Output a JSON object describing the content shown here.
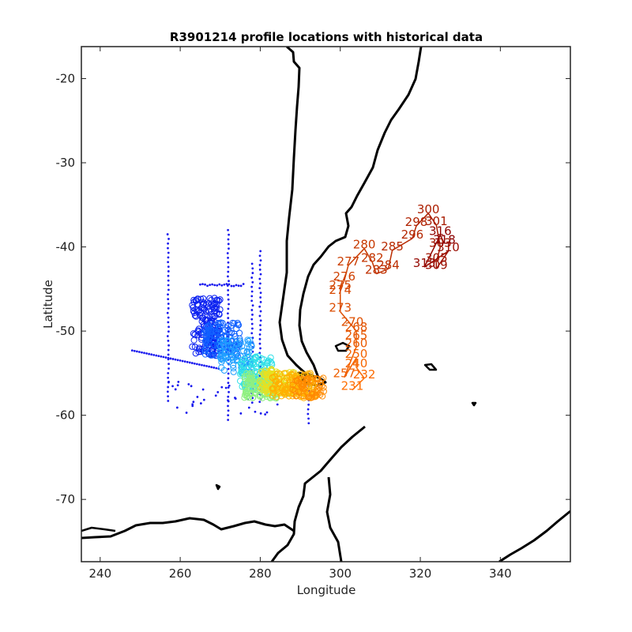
{
  "chart_data": {
    "type": "scatter",
    "title": "R3901214 profile locations with historical data",
    "xlabel": "Longitude",
    "ylabel": "Latitude",
    "xlim": [
      235.3,
      357.5
    ],
    "ylim": [
      -77.4,
      -16.2
    ],
    "xticks": [
      "240",
      "260",
      "280",
      "300",
      "320",
      "340"
    ],
    "yticks": [
      "-20",
      "-30",
      "-40",
      "-50",
      "-60",
      "-70"
    ],
    "xtick_values": [
      240,
      260,
      280,
      300,
      320,
      340
    ],
    "ytick_values": [
      -20,
      -30,
      -40,
      -50,
      -60,
      -70
    ],
    "grid": false,
    "legend": "none",
    "colors": {
      "historical": "#1a1aee",
      "coast": "#000000",
      "axes": "#222222"
    },
    "profile_labels": [
      {
        "text": "231",
        "x": 303,
        "y": -57.0
      },
      {
        "text": "232",
        "x": 306,
        "y": -55.6
      },
      {
        "text": "240",
        "x": 304,
        "y": -54.3
      },
      {
        "text": "250",
        "x": 304,
        "y": -53.2
      },
      {
        "text": "257",
        "x": 301,
        "y": -55.5
      },
      {
        "text": "260",
        "x": 304,
        "y": -51.9
      },
      {
        "text": "265",
        "x": 304,
        "y": -51.0
      },
      {
        "text": "268",
        "x": 304,
        "y": -50.0
      },
      {
        "text": "270",
        "x": 303,
        "y": -49.4
      },
      {
        "text": "273",
        "x": 300,
        "y": -47.7
      },
      {
        "text": "274",
        "x": 300,
        "y": -45.6
      },
      {
        "text": "275",
        "x": 300,
        "y": -45.0
      },
      {
        "text": "276",
        "x": 301,
        "y": -44.0
      },
      {
        "text": "277",
        "x": 302,
        "y": -42.2
      },
      {
        "text": "280",
        "x": 306,
        "y": -40.2
      },
      {
        "text": "282",
        "x": 308,
        "y": -41.8
      },
      {
        "text": "283",
        "x": 309,
        "y": -43.2
      },
      {
        "text": "284",
        "x": 312,
        "y": -42.6
      },
      {
        "text": "285",
        "x": 313,
        "y": -40.4
      },
      {
        "text": "296",
        "x": 318,
        "y": -39.0
      },
      {
        "text": "298",
        "x": 319,
        "y": -37.5
      },
      {
        "text": "300",
        "x": 322,
        "y": -36.0
      },
      {
        "text": "301",
        "x": 324,
        "y": -37.4
      },
      {
        "text": "303",
        "x": 325,
        "y": -40.0
      },
      {
        "text": "305",
        "x": 324,
        "y": -41.8
      },
      {
        "text": "309",
        "x": 324,
        "y": -42.6
      },
      {
        "text": "310",
        "x": 327,
        "y": -40.5
      },
      {
        "text": "313",
        "x": 321,
        "y": -42.4
      },
      {
        "text": "316",
        "x": 325,
        "y": -38.6
      },
      {
        "text": "318",
        "x": 326,
        "y": -39.6
      }
    ]
  }
}
